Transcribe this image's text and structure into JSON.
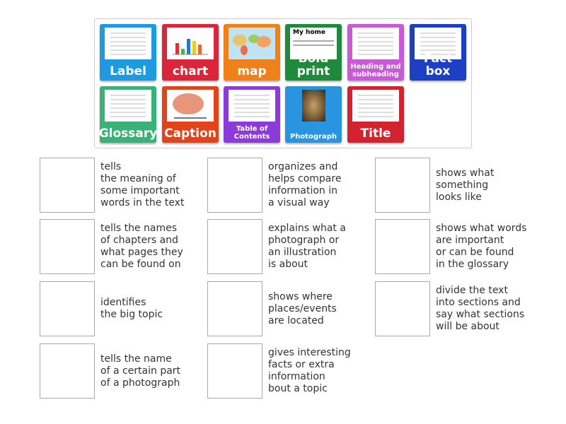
{
  "tiles": [
    {
      "label": "Label",
      "color": "#1e9be0",
      "size": "big",
      "image": "girl-reading-diagram"
    },
    {
      "label": "chart",
      "color": "#d9263a",
      "size": "big",
      "image": "bar-chart"
    },
    {
      "label": "map",
      "color": "#f08019",
      "size": "big",
      "image": "world-map"
    },
    {
      "label": "Bold print",
      "color": "#1f8a3c",
      "size": "big",
      "image": "my-home-text",
      "image_text": "My home"
    },
    {
      "label": "Heading and subheading",
      "color": "#c95ad6",
      "size": "small",
      "image": "worksheet-photo"
    },
    {
      "label": "Fact box",
      "color": "#1d3fc4",
      "size": "big",
      "image": "document-with-fact-box"
    },
    {
      "label": "Glossary",
      "color": "#3bb17a",
      "size": "big",
      "image": "glossary-page"
    },
    {
      "label": "Caption",
      "color": "#e2431a",
      "size": "big",
      "image": "brain"
    },
    {
      "label": "Table of Contents",
      "color": "#8a3bd8",
      "size": "small",
      "image": "contents-page"
    },
    {
      "label": "Photograph",
      "color": "#2994e0",
      "size": "small",
      "image": "cave-photo"
    },
    {
      "label": "Title",
      "color": "#d3232f",
      "size": "big",
      "image": "article-with-title"
    }
  ],
  "targets": [
    {
      "text": "tells\nthe meaning of\nsome important\nwords in the text"
    },
    {
      "text": "organizes and\nhelps compare\ninformation in\na visual way"
    },
    {
      "text": "shows what\nsomething\nlooks like"
    },
    {
      "text": "tells the names\nof chapters and\nwhat pages they\ncan be found on"
    },
    {
      "text": "explains what a\nphotograph or\nan illustration\nis about"
    },
    {
      "text": "shows what words\nare important\nor can be found\nin the glossary"
    },
    {
      "text": "identifies\nthe big topic"
    },
    {
      "text": "shows where\nplaces/events\nare located"
    },
    {
      "text": "divide the text\ninto sections and\nsay what sections\nwill be about"
    },
    {
      "text": "tells the name\nof a certain part\nof a photograph"
    },
    {
      "text": "gives interesting\nfacts or extra\ninformation\nbout a topic"
    }
  ]
}
